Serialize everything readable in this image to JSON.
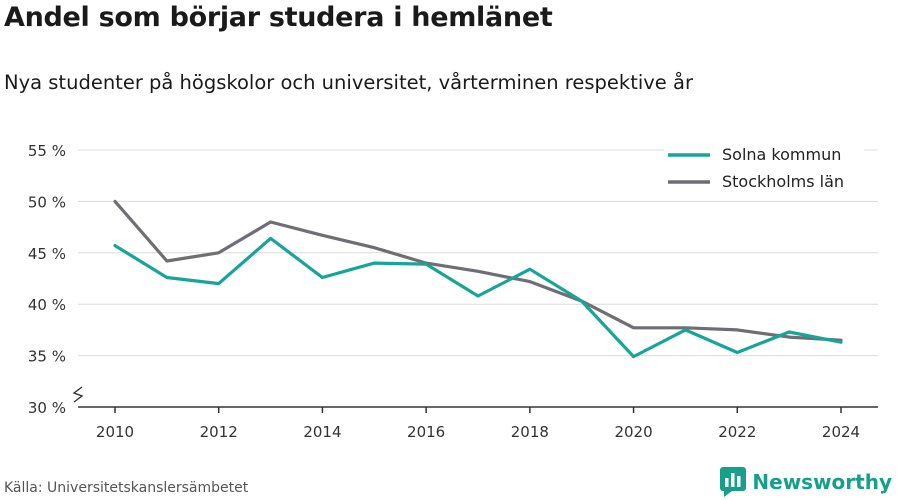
{
  "title": "Andel som börjar studera i hemlänet",
  "subtitle": "Nya studenter på högskolor och universitet, vårterminen respektive år",
  "source": "Källa: Universitetskanslersämbetet",
  "brand": {
    "name": "Newsworthy",
    "icon": "newsworthy-logo-icon",
    "color": "#16a08a"
  },
  "chart_data": {
    "type": "line",
    "title": "Andel som börjar studera i hemlänet",
    "xlabel": "",
    "ylabel": "",
    "x": [
      2010,
      2011,
      2012,
      2013,
      2014,
      2015,
      2016,
      2017,
      2018,
      2019,
      2020,
      2021,
      2022,
      2023,
      2024
    ],
    "series": [
      {
        "name": "Solna kommun",
        "color": "#16a596",
        "values": [
          45.7,
          42.6,
          42.0,
          46.4,
          42.6,
          44.0,
          43.9,
          40.8,
          43.4,
          40.3,
          34.9,
          37.5,
          35.3,
          37.3,
          36.3
        ]
      },
      {
        "name": "Stockholms län",
        "color": "#6e6e74",
        "values": [
          50.0,
          44.2,
          45.0,
          48.0,
          46.7,
          45.5,
          44.0,
          43.2,
          42.2,
          40.3,
          37.7,
          37.7,
          37.5,
          36.8,
          36.5
        ]
      }
    ],
    "ylim": [
      30,
      55
    ],
    "yticks": [
      30,
      35,
      40,
      45,
      50,
      55
    ],
    "ytick_labels": [
      "30 %",
      "35 %",
      "40 %",
      "45 %",
      "50 %",
      "55 %"
    ],
    "xticks": [
      2010,
      2012,
      2014,
      2016,
      2018,
      2020,
      2022,
      2024
    ],
    "xtick_labels": [
      "2010",
      "2012",
      "2014",
      "2016",
      "2018",
      "2020",
      "2022",
      "2024"
    ],
    "axis_break": true,
    "grid": true,
    "legend_position": "top-right"
  }
}
